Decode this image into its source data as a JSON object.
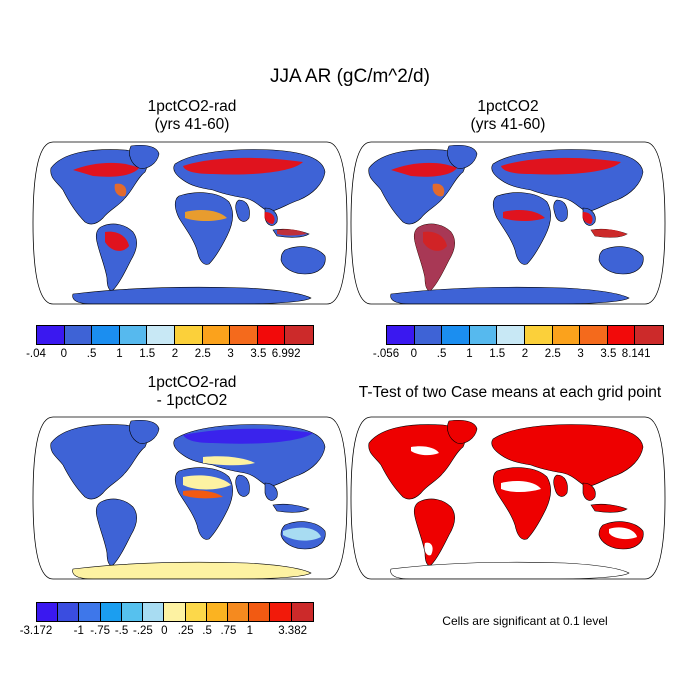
{
  "main_title": "JJA AR (gC/m^2/d)",
  "panels": [
    {
      "id": "p1",
      "title_line1": "1pctCO2-rad",
      "title_line2": "(yrs 41-60)",
      "ocean": "#ffffff",
      "land_base": "#3e63d6",
      "antarctica": "#3e63d6"
    },
    {
      "id": "p2",
      "title_line1": "1pctCO2",
      "title_line2": "(yrs 41-60)",
      "ocean": "#ffffff",
      "land_base": "#3e63d6",
      "antarctica": "#3e63d6"
    },
    {
      "id": "p3",
      "title_line1": "1pctCO2-rad",
      "title_line2": "- 1pctCO2",
      "ocean": "#ffffff",
      "land_base": "#3e63d6",
      "antarctica": "#fdf2a2"
    },
    {
      "id": "p4",
      "title_line1": "T-Test of two Case means at each grid point",
      "title_line2": "",
      "ocean": "#ffffff",
      "land_base": "#ee0000",
      "antarctica": "#ffffff"
    }
  ],
  "colorbars": [
    {
      "id": "cb1",
      "colors": [
        "#3a18f0",
        "#3e63d6",
        "#1b8ef0",
        "#56b9ee",
        "#c8e8f5",
        "#fbd03a",
        "#fba21c",
        "#f46a1c",
        "#f20a0a",
        "#cc2a2a"
      ],
      "labels": [
        "-.04",
        "0",
        ".5",
        "1",
        "1.5",
        "2",
        "2.5",
        "3",
        "3.5",
        "6.992"
      ]
    },
    {
      "id": "cb2",
      "colors": [
        "#3a18f0",
        "#3e63d6",
        "#1b8ef0",
        "#56b9ee",
        "#c8e8f5",
        "#fbd03a",
        "#fba21c",
        "#f46a1c",
        "#f20a0a",
        "#cc2a2a"
      ],
      "labels": [
        "-.056",
        "0",
        ".5",
        "1",
        "1.5",
        "2",
        "2.5",
        "3",
        "3.5",
        "8.141"
      ]
    },
    {
      "id": "cb3",
      "colors": [
        "#3a18f0",
        "#3a4de0",
        "#3e77ea",
        "#1b9ef0",
        "#56c1ee",
        "#a8dcf2",
        "#fdf2a2",
        "#fcd84a",
        "#fbb321",
        "#f58a1f",
        "#f25a12",
        "#f21a0a",
        "#cc2a2a"
      ],
      "labels": [
        "-3.172",
        "",
        "-1",
        "-.75",
        "-.5",
        "-.25",
        "0",
        ".25",
        ".5",
        ".75",
        "1",
        "",
        "3.382"
      ]
    }
  ],
  "significance_note": "Cells are significant at 0.1 level"
}
